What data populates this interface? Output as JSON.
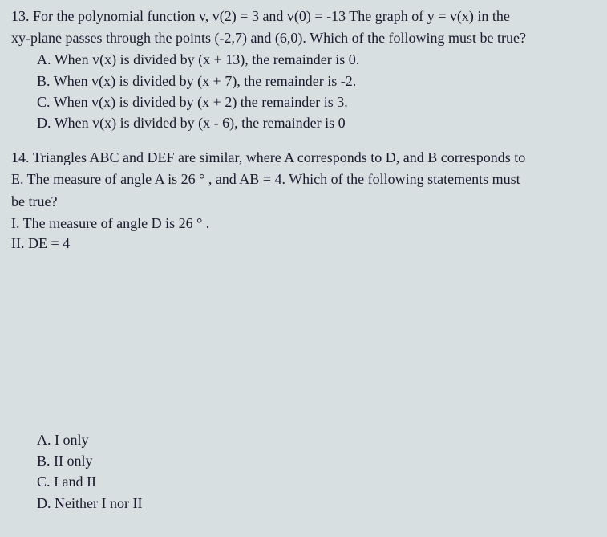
{
  "q13": {
    "number": "13.",
    "text_line1": "For the polynomial function v, v(2) = 3 and v(0) = -13 The graph of y = v(x) in the",
    "text_line2": "xy-plane passes through the points (-2,7) and (6,0). Which of the following must be true?",
    "choices": {
      "a": {
        "label": "A.",
        "text": "When v(x) is divided by (x + 13), the remainder is 0."
      },
      "b": {
        "label": "B.",
        "text": "When v(x) is divided by (x + 7), the remainder is -2."
      },
      "c": {
        "label": "C.",
        "text": "When v(x) is divided by (x + 2) the remainder is 3."
      },
      "d": {
        "label": "D.",
        "text": "When v(x) is divided by (x - 6), the remainder is 0"
      }
    }
  },
  "q14": {
    "number": "14.",
    "text_line1": "Triangles ABC and DEF are similar, where A corresponds to D, and B corresponds to",
    "text_line2": "E. The measure of angle A is 26 ° , and AB = 4. Which of the following statements must",
    "text_line3": "be true?",
    "roman": {
      "i": "I. The measure of angle D is 26 ° .",
      "ii": "II. DE = 4"
    },
    "choices": {
      "a": {
        "label": "A.",
        "text": "I only"
      },
      "b": {
        "label": "B.",
        "text": "II only"
      },
      "c": {
        "label": "C.",
        "text": "I and II"
      },
      "d": {
        "label": "D.",
        "text": "Neither I nor II"
      }
    }
  },
  "style": {
    "background_color": "#d8dfe0",
    "text_color": "#1a1a2e",
    "font_family": "Times New Roman",
    "font_size_pt": 13
  }
}
